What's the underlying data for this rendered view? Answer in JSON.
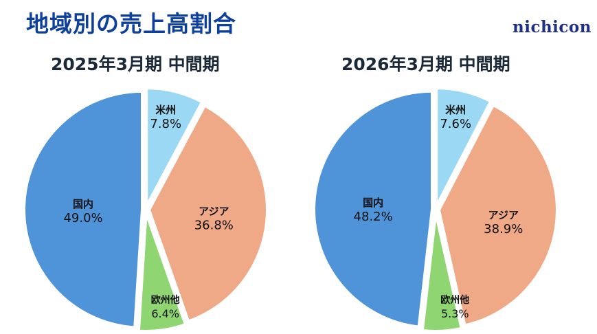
{
  "header": {
    "title": "地域別の売上高割合",
    "logo": "nichicon"
  },
  "colors": {
    "title": "#0d3f9c",
    "domestic": "#4f94d8",
    "americas": "#9ad8f4",
    "asia": "#f0a986",
    "europe": "#8fd672"
  },
  "chart_data": [
    {
      "type": "pie",
      "title": "2025年3月期 中間期",
      "categories": [
        "米州",
        "アジア",
        "欧州他",
        "国内"
      ],
      "values": [
        7.8,
        36.8,
        6.4,
        49.0
      ],
      "labels": [
        "7.8%",
        "36.8%",
        "6.4%",
        "49.0%"
      ],
      "start_angle": "12 o'clock, clockwise",
      "exploded": true
    },
    {
      "type": "pie",
      "title": "2026年3月期 中間期",
      "categories": [
        "米州",
        "アジア",
        "欧州他",
        "国内"
      ],
      "values": [
        7.6,
        38.9,
        5.3,
        48.2
      ],
      "labels": [
        "7.6%",
        "38.9%",
        "5.3%",
        "48.2%"
      ],
      "start_angle": "12 o'clock, clockwise",
      "exploded": true
    }
  ]
}
